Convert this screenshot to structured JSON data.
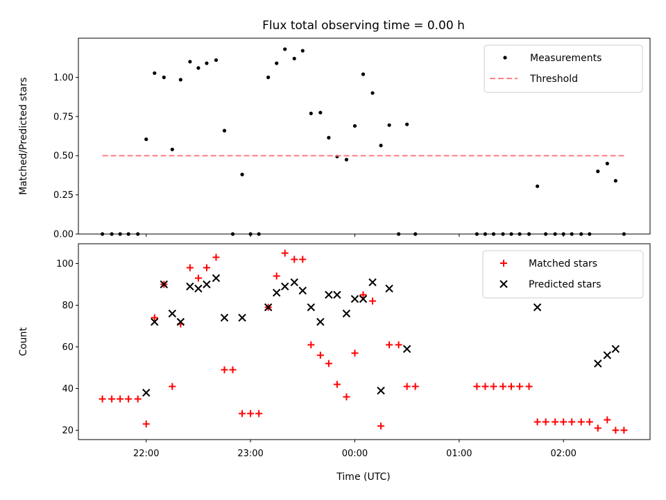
{
  "chart_data": {
    "type": "scatter",
    "title": "Flux total observing time = 0.00 h",
    "xlabel": "Time (UTC)",
    "x_ticks": [
      {
        "label": "22:00",
        "h": 22.0
      },
      {
        "label": "23:00",
        "h": 23.0
      },
      {
        "label": "00:00",
        "h": 24.0
      },
      {
        "label": "01:00",
        "h": 25.0
      },
      {
        "label": "02:00",
        "h": 26.0
      }
    ],
    "xlim_hours": [
      21.35,
      26.83
    ],
    "panels": [
      {
        "ylabel": "Matched/Predicted stars",
        "ylim": [
          0.0,
          1.25
        ],
        "yticks": [
          "0.00",
          "0.25",
          "0.50",
          "0.75",
          "1.00"
        ],
        "ytick_values": [
          0.0,
          0.25,
          0.5,
          0.75,
          1.0
        ],
        "series": [
          {
            "name": "Measurements",
            "marker": "dot",
            "color": "#000000",
            "points": [
              [
                21.58,
                0
              ],
              [
                21.67,
                0
              ],
              [
                21.75,
                0
              ],
              [
                21.83,
                0
              ],
              [
                21.92,
                0
              ],
              [
                22.0,
                0.605
              ],
              [
                22.08,
                1.027
              ],
              [
                22.17,
                1.0
              ],
              [
                22.25,
                0.54
              ],
              [
                22.33,
                0.985
              ],
              [
                22.42,
                1.1
              ],
              [
                22.5,
                1.06
              ],
              [
                22.58,
                1.09
              ],
              [
                22.67,
                1.11
              ],
              [
                22.75,
                0.66
              ],
              [
                22.83,
                0
              ],
              [
                22.92,
                0.38
              ],
              [
                23.0,
                0
              ],
              [
                23.08,
                0
              ],
              [
                23.17,
                1.0
              ],
              [
                23.25,
                1.09
              ],
              [
                23.33,
                1.18
              ],
              [
                23.42,
                1.12
              ],
              [
                23.5,
                1.17
              ],
              [
                23.58,
                0.77
              ],
              [
                23.67,
                0.775
              ],
              [
                23.75,
                0.615
              ],
              [
                23.83,
                0.495
              ],
              [
                23.92,
                0.475
              ],
              [
                24.0,
                0.69
              ],
              [
                24.08,
                1.02
              ],
              [
                24.17,
                0.9
              ],
              [
                24.25,
                0.565
              ],
              [
                24.33,
                0.695
              ],
              [
                24.42,
                0
              ],
              [
                24.5,
                0.7
              ],
              [
                24.58,
                0
              ],
              [
                25.17,
                0
              ],
              [
                25.25,
                0
              ],
              [
                25.33,
                0
              ],
              [
                25.42,
                0
              ],
              [
                25.5,
                0
              ],
              [
                25.58,
                0
              ],
              [
                25.67,
                0
              ],
              [
                25.75,
                0.305
              ],
              [
                25.83,
                0
              ],
              [
                25.92,
                0
              ],
              [
                26.0,
                0
              ],
              [
                26.08,
                0
              ],
              [
                26.17,
                0
              ],
              [
                26.25,
                0
              ],
              [
                26.33,
                0.4
              ],
              [
                26.42,
                0.45
              ],
              [
                26.5,
                0.34
              ],
              [
                26.58,
                0
              ]
            ]
          },
          {
            "name": "Threshold",
            "marker": "dashed-line",
            "color": "#ff7f7f",
            "points": [
              [
                21.58,
                0.5
              ],
              [
                26.58,
                0.5
              ]
            ]
          }
        ]
      },
      {
        "ylabel": "Count",
        "ylim": [
          15.5,
          109.5
        ],
        "yticks": [
          "20",
          "40",
          "60",
          "80",
          "100"
        ],
        "ytick_values": [
          20,
          40,
          60,
          80,
          100
        ],
        "series": [
          {
            "name": "Matched stars",
            "marker": "plus",
            "color": "#ff0000",
            "points": [
              [
                21.58,
                35
              ],
              [
                21.67,
                35
              ],
              [
                21.75,
                35
              ],
              [
                21.83,
                35
              ],
              [
                21.92,
                35
              ],
              [
                22.0,
                23
              ],
              [
                22.08,
                74
              ],
              [
                22.17,
                90
              ],
              [
                22.25,
                41
              ],
              [
                22.33,
                71
              ],
              [
                22.42,
                98
              ],
              [
                22.5,
                93
              ],
              [
                22.58,
                98
              ],
              [
                22.67,
                103
              ],
              [
                22.75,
                49
              ],
              [
                22.83,
                49
              ],
              [
                22.92,
                28
              ],
              [
                23.0,
                28
              ],
              [
                23.08,
                28
              ],
              [
                23.17,
                79
              ],
              [
                23.25,
                94
              ],
              [
                23.33,
                105
              ],
              [
                23.42,
                102
              ],
              [
                23.5,
                102
              ],
              [
                23.58,
                61
              ],
              [
                23.67,
                56
              ],
              [
                23.75,
                52
              ],
              [
                23.83,
                42
              ],
              [
                23.92,
                36
              ],
              [
                24.0,
                57
              ],
              [
                24.08,
                85
              ],
              [
                24.17,
                82
              ],
              [
                24.25,
                22
              ],
              [
                24.33,
                61
              ],
              [
                24.42,
                61
              ],
              [
                24.5,
                41
              ],
              [
                24.58,
                41
              ],
              [
                25.17,
                41
              ],
              [
                25.25,
                41
              ],
              [
                25.33,
                41
              ],
              [
                25.42,
                41
              ],
              [
                25.5,
                41
              ],
              [
                25.58,
                41
              ],
              [
                25.67,
                41
              ],
              [
                25.75,
                24
              ],
              [
                25.83,
                24
              ],
              [
                25.92,
                24
              ],
              [
                26.0,
                24
              ],
              [
                26.08,
                24
              ],
              [
                26.17,
                24
              ],
              [
                26.25,
                24
              ],
              [
                26.33,
                21
              ],
              [
                26.42,
                25
              ],
              [
                26.5,
                20
              ],
              [
                26.58,
                20
              ]
            ]
          },
          {
            "name": "Predicted stars",
            "marker": "x",
            "color": "#000000",
            "points": [
              [
                22.0,
                38
              ],
              [
                22.08,
                72
              ],
              [
                22.17,
                90
              ],
              [
                22.25,
                76
              ],
              [
                22.33,
                72
              ],
              [
                22.42,
                89
              ],
              [
                22.5,
                88
              ],
              [
                22.58,
                90
              ],
              [
                22.67,
                93
              ],
              [
                22.75,
                74
              ],
              [
                22.92,
                74
              ],
              [
                23.17,
                79
              ],
              [
                23.25,
                86
              ],
              [
                23.33,
                89
              ],
              [
                23.42,
                91
              ],
              [
                23.5,
                87
              ],
              [
                23.58,
                79
              ],
              [
                23.67,
                72
              ],
              [
                23.75,
                85
              ],
              [
                23.83,
                85
              ],
              [
                23.92,
                76
              ],
              [
                24.0,
                83
              ],
              [
                24.08,
                83
              ],
              [
                24.17,
                91
              ],
              [
                24.25,
                39
              ],
              [
                24.33,
                88
              ],
              [
                24.5,
                59
              ],
              [
                25.75,
                79
              ],
              [
                26.33,
                52
              ],
              [
                26.42,
                56
              ],
              [
                26.5,
                59
              ]
            ]
          }
        ]
      }
    ],
    "legend": "top-right"
  }
}
